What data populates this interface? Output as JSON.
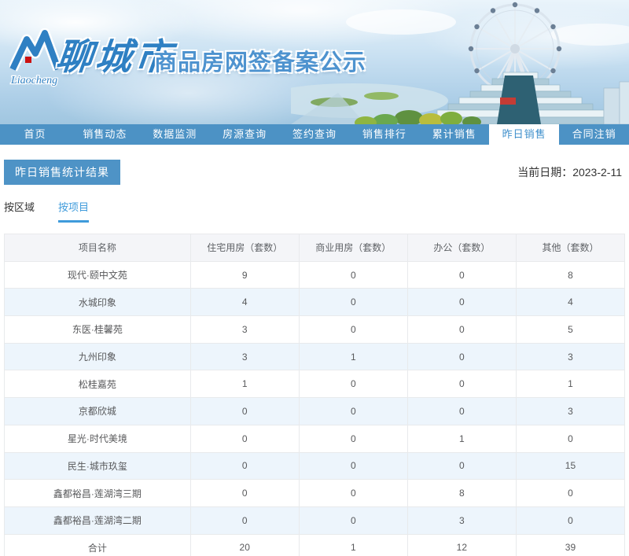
{
  "banner": {
    "logo_script": "Liaocheng",
    "city_name": "聊城市",
    "site_title": "商品房网签备案公示"
  },
  "nav": {
    "items": [
      {
        "label": "首页",
        "active": false
      },
      {
        "label": "销售动态",
        "active": false
      },
      {
        "label": "数据监测",
        "active": false
      },
      {
        "label": "房源查询",
        "active": false
      },
      {
        "label": "签约查询",
        "active": false
      },
      {
        "label": "销售排行",
        "active": false
      },
      {
        "label": "累计销售",
        "active": false
      },
      {
        "label": "昨日销售",
        "active": true
      },
      {
        "label": "合同注销",
        "active": false
      }
    ]
  },
  "page": {
    "section_title": "昨日销售统计结果",
    "date_label": "当前日期：2023-2-11"
  },
  "tabs": [
    {
      "label": "按区域",
      "active": false
    },
    {
      "label": "按项目",
      "active": true
    }
  ],
  "table": {
    "headers": [
      "项目名称",
      "住宅用房（套数）",
      "商业用房（套数）",
      "办公（套数）",
      "其他（套数）"
    ],
    "rows": [
      {
        "name": "现代·颐中文苑",
        "values": [
          "9",
          "0",
          "0",
          "8"
        ]
      },
      {
        "name": "水城印象",
        "values": [
          "4",
          "0",
          "0",
          "4"
        ]
      },
      {
        "name": "东医·桂馨苑",
        "values": [
          "3",
          "0",
          "0",
          "5"
        ]
      },
      {
        "name": "九州印象",
        "values": [
          "3",
          "1",
          "0",
          "3"
        ]
      },
      {
        "name": "松桂嘉苑",
        "values": [
          "1",
          "0",
          "0",
          "1"
        ]
      },
      {
        "name": "京都欣城",
        "values": [
          "0",
          "0",
          "0",
          "3"
        ]
      },
      {
        "name": "星光·时代美境",
        "values": [
          "0",
          "0",
          "1",
          "0"
        ]
      },
      {
        "name": "民生·城市玖玺",
        "values": [
          "0",
          "0",
          "0",
          "15"
        ]
      },
      {
        "name": "鑫都裕昌·莲湖湾三期",
        "values": [
          "0",
          "0",
          "8",
          "0"
        ]
      },
      {
        "name": "鑫都裕昌·莲湖湾二期",
        "values": [
          "0",
          "0",
          "3",
          "0"
        ]
      },
      {
        "name": "合计",
        "values": [
          "20",
          "1",
          "12",
          "39"
        ]
      }
    ]
  },
  "colors": {
    "nav_blue": "#4C92C5",
    "accent_blue": "#3F9BDB",
    "badge_blue": "#4E93C6",
    "row_alt_blue": "#EDF5FC",
    "header_gray": "#F4F5F8",
    "logo_blue": "#2F80C3",
    "logo_red": "#CC1111"
  }
}
